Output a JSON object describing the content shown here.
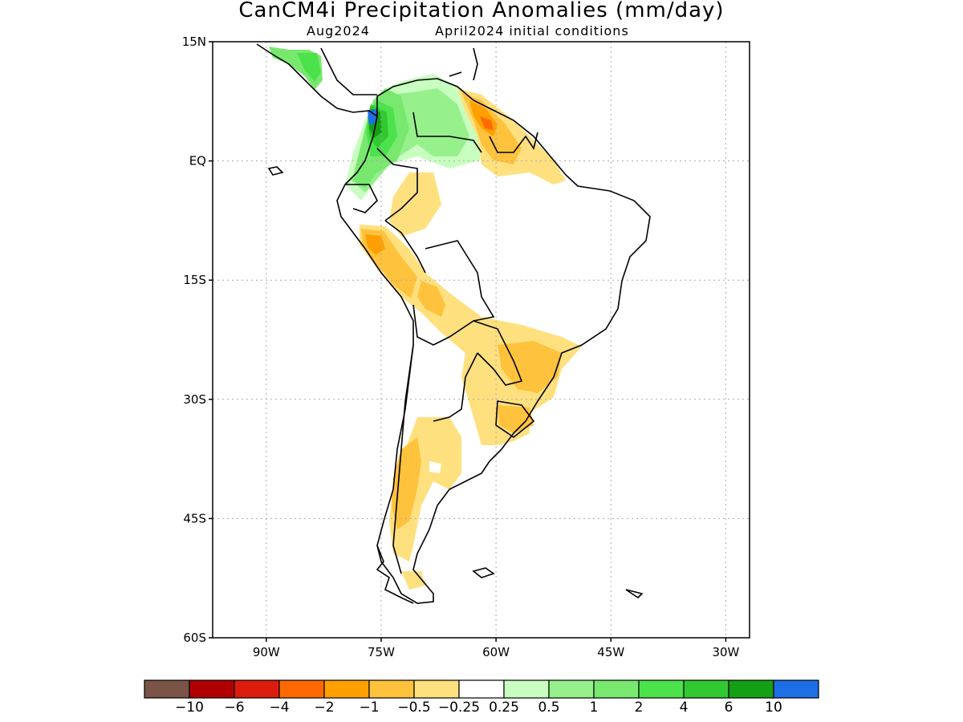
{
  "title": "CanCM4i Precipitation Anomalies (mm/day)",
  "subtitle_left": "Aug2024",
  "subtitle_right": "April2024 initial conditions",
  "y_axis": {
    "ticks": [
      {
        "lat": 15,
        "label": "15N"
      },
      {
        "lat": 0,
        "label": "EQ"
      },
      {
        "lat": -15,
        "label": "15S"
      },
      {
        "lat": -30,
        "label": "30S"
      },
      {
        "lat": -45,
        "label": "45S"
      },
      {
        "lat": -60,
        "label": "60S"
      }
    ]
  },
  "x_axis": {
    "ticks": [
      {
        "lon": -90,
        "label": "90W"
      },
      {
        "lon": -75,
        "label": "75W"
      },
      {
        "lon": -60,
        "label": "60W"
      },
      {
        "lon": -45,
        "label": "45W"
      },
      {
        "lon": -30,
        "label": "30W"
      }
    ]
  },
  "colorbar": {
    "colors": [
      "#7a5447",
      "#b00000",
      "#dc1c0c",
      "#ff6a00",
      "#ffa000",
      "#ffc23c",
      "#ffe07e",
      "#ffffff",
      "#c8ffc0",
      "#96f08c",
      "#78e86e",
      "#4ce24c",
      "#32c832",
      "#14a014",
      "#1e6ee6"
    ],
    "labels": [
      "−10",
      "−6",
      "−4",
      "−2",
      "−1",
      "−0.5",
      "−0.25",
      "0.25",
      "0.5",
      "1",
      "2",
      "4",
      "6",
      "10"
    ]
  },
  "legend_colors": {
    "dry_light": "#ffe07e",
    "dry_mid": "#ffc23c",
    "dry_strong": "#ffa000",
    "dry_stronger": "#ff6a00",
    "wet_faint": "#c8ffc0",
    "wet_light": "#96f08c",
    "wet_mid": "#78e86e",
    "wet_strong": "#4ce24c",
    "wet_stronger": "#32c832",
    "wet_max": "#14a014",
    "wet_extreme": "#1e6ee6"
  }
}
